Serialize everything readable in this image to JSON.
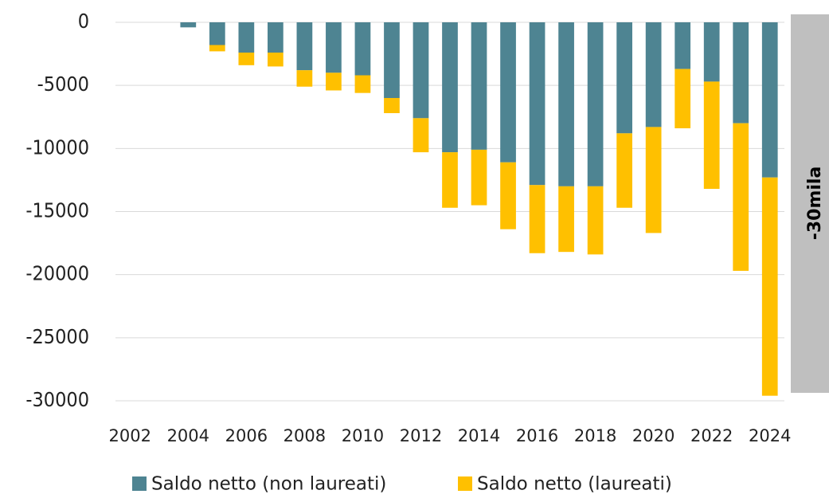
{
  "chart_data": {
    "type": "bar",
    "stacked": true,
    "categories": [
      "2002",
      null,
      "2004",
      null,
      "2006",
      null,
      "2008",
      null,
      "2010",
      null,
      "2012",
      null,
      "2014",
      null,
      "2016",
      null,
      "2018",
      null,
      "2020",
      null,
      "2022",
      null,
      "2024"
    ],
    "series": [
      {
        "name": "Saldo netto (non laureati)",
        "color": "#4e8492",
        "values": [
          0,
          0,
          -400,
          -1800,
          -2400,
          -2400,
          -3800,
          -4000,
          -4200,
          -6000,
          -7600,
          -10300,
          -10100,
          -11100,
          -12900,
          -13000,
          -13000,
          -8800,
          -8300,
          -3700,
          -4700,
          -8000,
          -12300
        ]
      },
      {
        "name": "Saldo netto (laureati)",
        "color": "#ffc000",
        "values": [
          0,
          0,
          0,
          -500,
          -1000,
          -1100,
          -1300,
          -1400,
          -1400,
          -1200,
          -2700,
          -4400,
          -4400,
          -5300,
          -5400,
          -5200,
          -5400,
          -5900,
          -8400,
          -4700,
          -8500,
          -11700,
          -17300
        ]
      }
    ],
    "ylim": [
      -30000,
      0
    ],
    "yticks": [
      0,
      -5000,
      -10000,
      -15000,
      -20000,
      -25000,
      -30000
    ],
    "grid": true,
    "annotation": "-30mila"
  }
}
